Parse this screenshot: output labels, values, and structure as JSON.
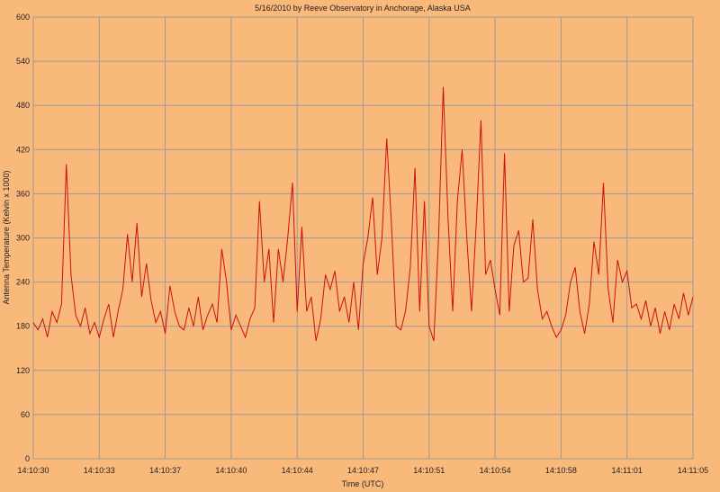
{
  "chart_data": {
    "type": "line",
    "title": "5/16/2010  by  Reeve Observatory  in  Anchorage, Alaska  USA",
    "xlabel": "Time (UTC)",
    "ylabel": "Antenna Temperature (Kelvin x 1000)",
    "xlim": [
      0,
      35
    ],
    "xticks": [
      {
        "value": 0,
        "label": "14:10:30"
      },
      {
        "value": 3.5,
        "label": "14:10:33"
      },
      {
        "value": 7,
        "label": "14:10:37"
      },
      {
        "value": 10.5,
        "label": "14:10:40"
      },
      {
        "value": 14,
        "label": "14:10:44"
      },
      {
        "value": 17.5,
        "label": "14:10:47"
      },
      {
        "value": 21,
        "label": "14:10:51"
      },
      {
        "value": 24.5,
        "label": "14:10:54"
      },
      {
        "value": 28,
        "label": "14:10:58"
      },
      {
        "value": 31.5,
        "label": "14:11:01"
      },
      {
        "value": 35,
        "label": "14:11:05"
      }
    ],
    "ylim": [
      0,
      600
    ],
    "yticks": [
      0,
      60,
      120,
      180,
      240,
      300,
      360,
      420,
      480,
      540,
      600
    ],
    "grid": true,
    "x": [
      0,
      0.25,
      0.5,
      0.75,
      1,
      1.25,
      1.5,
      1.75,
      2,
      2.25,
      2.5,
      2.75,
      3,
      3.25,
      3.5,
      3.75,
      4,
      4.25,
      4.5,
      4.75,
      5,
      5.25,
      5.5,
      5.75,
      6,
      6.25,
      6.5,
      6.75,
      7,
      7.25,
      7.5,
      7.75,
      8,
      8.25,
      8.5,
      8.75,
      9,
      9.25,
      9.5,
      9.75,
      10,
      10.25,
      10.5,
      10.75,
      11,
      11.25,
      11.5,
      11.75,
      12,
      12.25,
      12.5,
      12.75,
      13,
      13.25,
      13.5,
      13.75,
      14,
      14.25,
      14.5,
      14.75,
      15,
      15.25,
      15.5,
      15.75,
      16,
      16.25,
      16.5,
      16.75,
      17,
      17.25,
      17.5,
      17.75,
      18,
      18.25,
      18.5,
      18.75,
      19,
      19.25,
      19.5,
      19.75,
      20,
      20.25,
      20.5,
      20.75,
      21,
      21.25,
      21.5,
      21.75,
      22,
      22.25,
      22.5,
      22.75,
      23,
      23.25,
      23.5,
      23.75,
      24,
      24.25,
      24.5,
      24.75,
      25,
      25.25,
      25.5,
      25.75,
      26,
      26.25,
      26.5,
      26.75,
      27,
      27.25,
      27.5,
      27.75,
      28,
      28.25,
      28.5,
      28.75,
      29,
      29.25,
      29.5,
      29.75,
      30,
      30.25,
      30.5,
      30.75,
      31,
      31.25,
      31.5,
      31.75,
      32,
      32.25,
      32.5,
      32.75,
      33,
      33.25,
      33.5,
      33.75,
      34,
      34.25,
      34.5,
      34.75,
      35
    ],
    "series": [
      {
        "color": "#cc1010",
        "values": [
          185,
          175,
          190,
          165,
          200,
          185,
          210,
          400,
          250,
          195,
          180,
          205,
          170,
          185,
          165,
          190,
          210,
          165,
          200,
          230,
          305,
          240,
          320,
          220,
          265,
          215,
          185,
          200,
          170,
          235,
          200,
          180,
          175,
          205,
          180,
          220,
          175,
          195,
          210,
          185,
          285,
          240,
          175,
          195,
          180,
          165,
          190,
          205,
          350,
          240,
          285,
          185,
          285,
          240,
          300,
          375,
          200,
          315,
          200,
          220,
          160,
          190,
          250,
          230,
          255,
          200,
          220,
          185,
          240,
          175,
          265,
          300,
          355,
          250,
          300,
          435,
          320,
          180,
          175,
          200,
          260,
          395,
          200,
          350,
          180,
          160,
          300,
          505,
          330,
          200,
          350,
          420,
          300,
          200,
          320,
          460,
          250,
          270,
          230,
          195,
          415,
          200,
          290,
          310,
          240,
          245,
          325,
          230,
          190,
          200,
          180,
          165,
          175,
          195,
          240,
          260,
          200,
          170,
          210,
          295,
          250,
          375,
          230,
          185,
          270,
          240,
          255,
          205,
          210,
          190,
          215,
          180,
          205,
          170,
          200,
          175,
          210,
          190,
          225,
          195,
          220
        ]
      }
    ]
  }
}
